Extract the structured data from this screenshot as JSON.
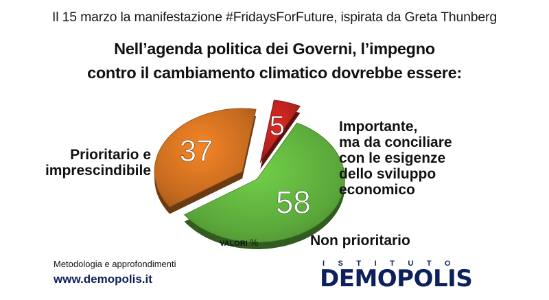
{
  "header": {
    "subtitle": "Il 15 marzo la manifestazione #FridaysForFuture, ispirata da Greta Thunberg",
    "title_lines": [
      "Nell’agenda politica dei Governi, l’impegno",
      "contro il cambiamento climatico dovrebbe essere:"
    ]
  },
  "chart_data": {
    "type": "pie",
    "title": "Nell’agenda politica dei Governi, l’impegno contro il cambiamento climatico dovrebbe essere:",
    "subtitle": "Il 15 marzo la manifestazione #FridaysForFuture, ispirata da Greta Thunberg",
    "units_label": "VALORI",
    "units_symbol": "%",
    "slices": [
      {
        "value": 58,
        "value_label": "58",
        "label_lines": [
          "Prioritario e",
          "imprescindibile"
        ],
        "color": "#5aa63a"
      },
      {
        "value": 37,
        "value_label": "37",
        "label_lines": [
          "Importante,",
          "ma da conciliare",
          "con le esigenze",
          "dello sviluppo",
          "economico"
        ],
        "color": "#c46a1f"
      },
      {
        "value": 5,
        "value_label": "5",
        "label_lines": [
          "Non prioritario"
        ],
        "color": "#b0211c"
      }
    ]
  },
  "footer": {
    "method_text": "Metodologia e approfondimenti",
    "url": "www.demopolis.it",
    "brand_top": "ISTITUTO",
    "brand_name": "DEMOPOLIS"
  }
}
